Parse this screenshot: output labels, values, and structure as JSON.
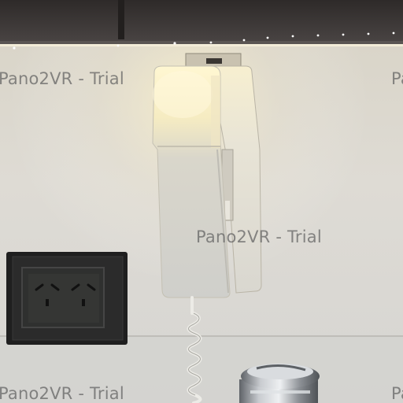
{
  "watermark": {
    "text": "Pano2VR - Trial"
  },
  "scene": {
    "objects": [
      "cabinet-underside",
      "led-strip",
      "wall-intercom",
      "coiled-cord",
      "wall-outlet",
      "chrome-faucet"
    ],
    "colors": {
      "wall": "#dcd8cf",
      "cabinet": "#3b3736",
      "warm_light": "#fff0b8",
      "outlet_frame": "#222222",
      "chrome": "#9a9ea3"
    }
  }
}
